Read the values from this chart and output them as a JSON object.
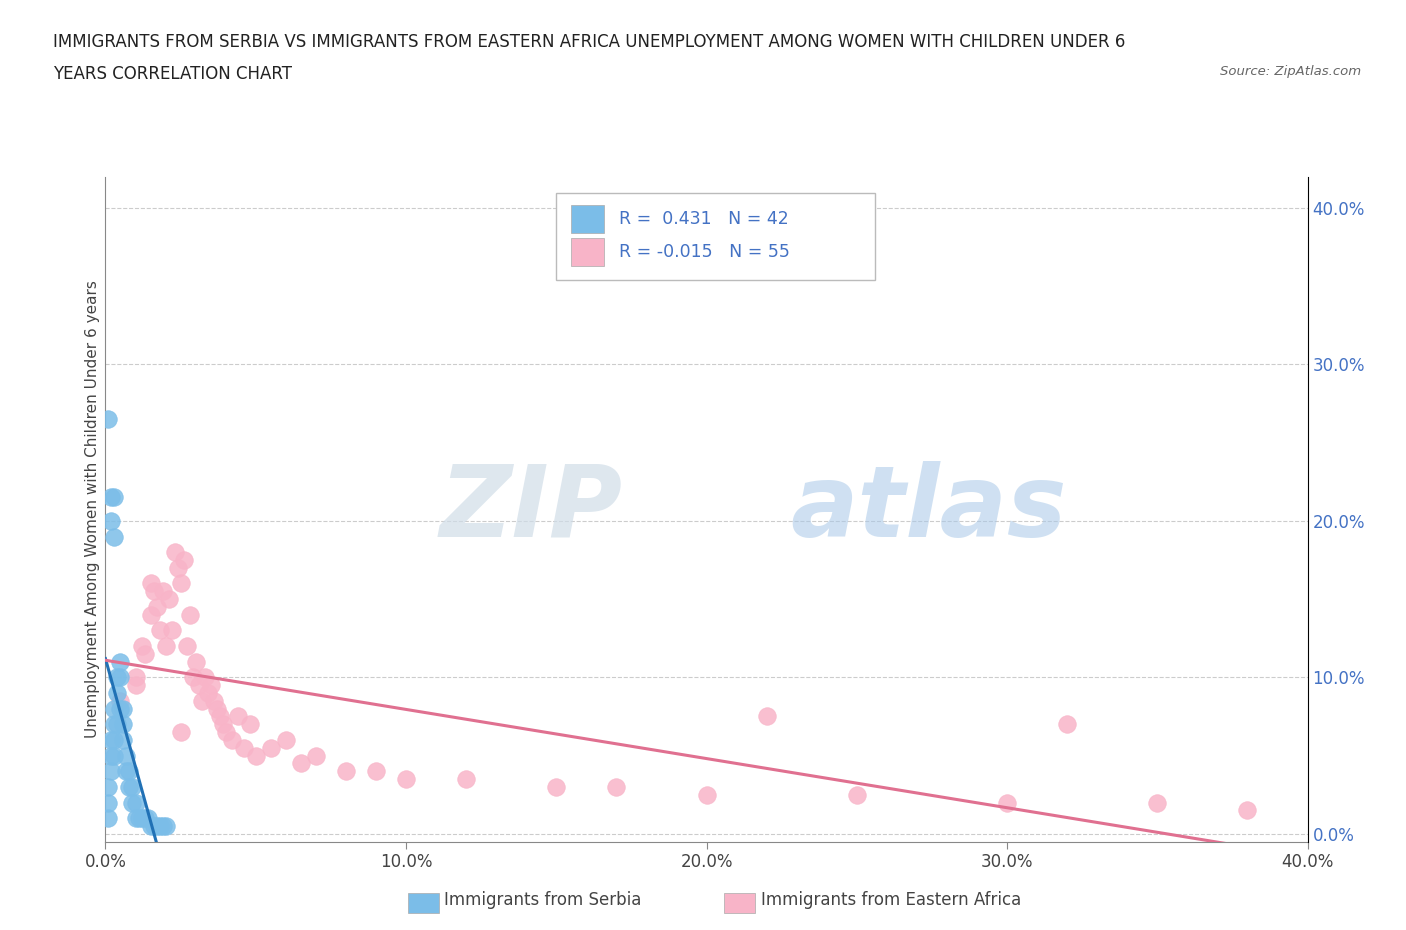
{
  "title_line1": "IMMIGRANTS FROM SERBIA VS IMMIGRANTS FROM EASTERN AFRICA UNEMPLOYMENT AMONG WOMEN WITH CHILDREN UNDER 6",
  "title_line2": "YEARS CORRELATION CHART",
  "source": "Source: ZipAtlas.com",
  "ylabel": "Unemployment Among Women with Children Under 6 years",
  "xlim": [
    0.0,
    0.4
  ],
  "ylim": [
    -0.005,
    0.42
  ],
  "yticks": [
    0.0,
    0.1,
    0.2,
    0.3,
    0.4
  ],
  "xticks": [
    0.0,
    0.1,
    0.2,
    0.3,
    0.4
  ],
  "serbia_R": 0.431,
  "serbia_N": 42,
  "eastern_africa_R": -0.015,
  "eastern_africa_N": 55,
  "serbia_color": "#7bbde8",
  "serbia_line_color": "#2171b5",
  "eastern_africa_color": "#f8b4c8",
  "eastern_africa_line_color": "#e07090",
  "watermark_zip": "ZIP",
  "watermark_atlas": "atlas",
  "serbia_x": [
    0.001,
    0.001,
    0.001,
    0.002,
    0.002,
    0.002,
    0.003,
    0.003,
    0.003,
    0.003,
    0.004,
    0.004,
    0.004,
    0.005,
    0.005,
    0.005,
    0.006,
    0.006,
    0.006,
    0.007,
    0.007,
    0.008,
    0.008,
    0.009,
    0.009,
    0.01,
    0.01,
    0.011,
    0.012,
    0.013,
    0.014,
    0.015,
    0.016,
    0.017,
    0.018,
    0.019,
    0.02,
    0.001,
    0.002,
    0.002,
    0.003,
    0.003
  ],
  "serbia_y": [
    0.01,
    0.02,
    0.03,
    0.04,
    0.05,
    0.06,
    0.07,
    0.08,
    0.06,
    0.05,
    0.07,
    0.09,
    0.1,
    0.08,
    0.1,
    0.11,
    0.08,
    0.07,
    0.06,
    0.05,
    0.04,
    0.04,
    0.03,
    0.03,
    0.02,
    0.02,
    0.01,
    0.01,
    0.01,
    0.01,
    0.01,
    0.005,
    0.005,
    0.005,
    0.005,
    0.005,
    0.005,
    0.265,
    0.215,
    0.2,
    0.19,
    0.215
  ],
  "eastern_africa_x": [
    0.005,
    0.01,
    0.012,
    0.013,
    0.015,
    0.015,
    0.016,
    0.017,
    0.018,
    0.019,
    0.02,
    0.021,
    0.022,
    0.023,
    0.024,
    0.025,
    0.026,
    0.027,
    0.028,
    0.029,
    0.03,
    0.031,
    0.032,
    0.033,
    0.034,
    0.035,
    0.036,
    0.037,
    0.038,
    0.039,
    0.04,
    0.042,
    0.044,
    0.046,
    0.048,
    0.05,
    0.055,
    0.06,
    0.065,
    0.07,
    0.08,
    0.09,
    0.1,
    0.12,
    0.15,
    0.17,
    0.2,
    0.22,
    0.25,
    0.3,
    0.32,
    0.35,
    0.38,
    0.01,
    0.025
  ],
  "eastern_africa_y": [
    0.085,
    0.1,
    0.12,
    0.115,
    0.14,
    0.16,
    0.155,
    0.145,
    0.13,
    0.155,
    0.12,
    0.15,
    0.13,
    0.18,
    0.17,
    0.16,
    0.175,
    0.12,
    0.14,
    0.1,
    0.11,
    0.095,
    0.085,
    0.1,
    0.09,
    0.095,
    0.085,
    0.08,
    0.075,
    0.07,
    0.065,
    0.06,
    0.075,
    0.055,
    0.07,
    0.05,
    0.055,
    0.06,
    0.045,
    0.05,
    0.04,
    0.04,
    0.035,
    0.035,
    0.03,
    0.03,
    0.025,
    0.075,
    0.025,
    0.02,
    0.07,
    0.02,
    0.015,
    0.095,
    0.065
  ]
}
